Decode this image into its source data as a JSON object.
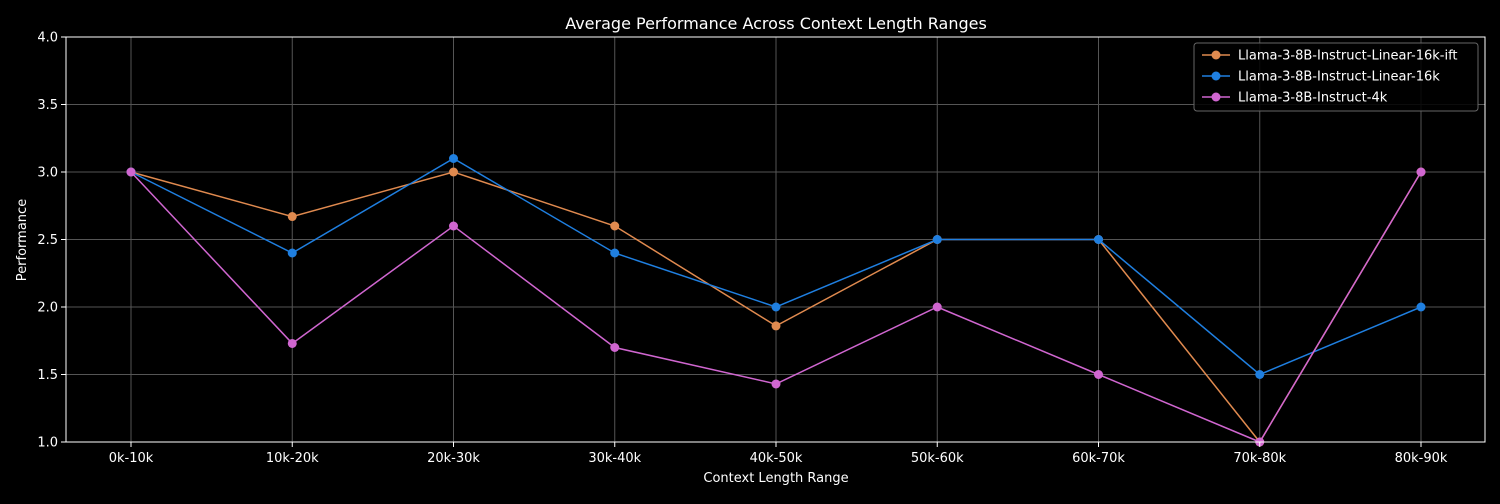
{
  "chart_data": {
    "type": "line",
    "title": "Average Performance Across Context Length Ranges",
    "xlabel": "Context Length Range",
    "ylabel": "Performance",
    "categories": [
      "0k-10k",
      "10k-20k",
      "20k-30k",
      "30k-40k",
      "40k-50k",
      "50k-60k",
      "60k-70k",
      "70k-80k",
      "80k-90k"
    ],
    "ylim": [
      1.0,
      4.0
    ],
    "yticks": [
      "1.0",
      "1.5",
      "2.0",
      "2.5",
      "3.0",
      "3.5",
      "4.0"
    ],
    "grid": true,
    "legend_position": "top-right",
    "series": [
      {
        "name": "Llama-3-8B-Instruct-Linear-16k-ift",
        "color": "#e08a4f",
        "values": [
          3.0,
          2.67,
          3.0,
          2.6,
          1.86,
          2.5,
          2.5,
          1.0,
          3.0
        ]
      },
      {
        "name": "Llama-3-8B-Instruct-Linear-16k",
        "color": "#1f7fe0",
        "values": [
          3.0,
          2.4,
          3.1,
          2.4,
          2.0,
          2.5,
          2.5,
          1.5,
          2.0
        ]
      },
      {
        "name": "Llama-3-8B-Instruct-4k",
        "color": "#d066d0",
        "values": [
          3.0,
          1.73,
          2.6,
          1.7,
          1.43,
          2.0,
          1.5,
          1.0,
          3.0
        ]
      }
    ]
  }
}
